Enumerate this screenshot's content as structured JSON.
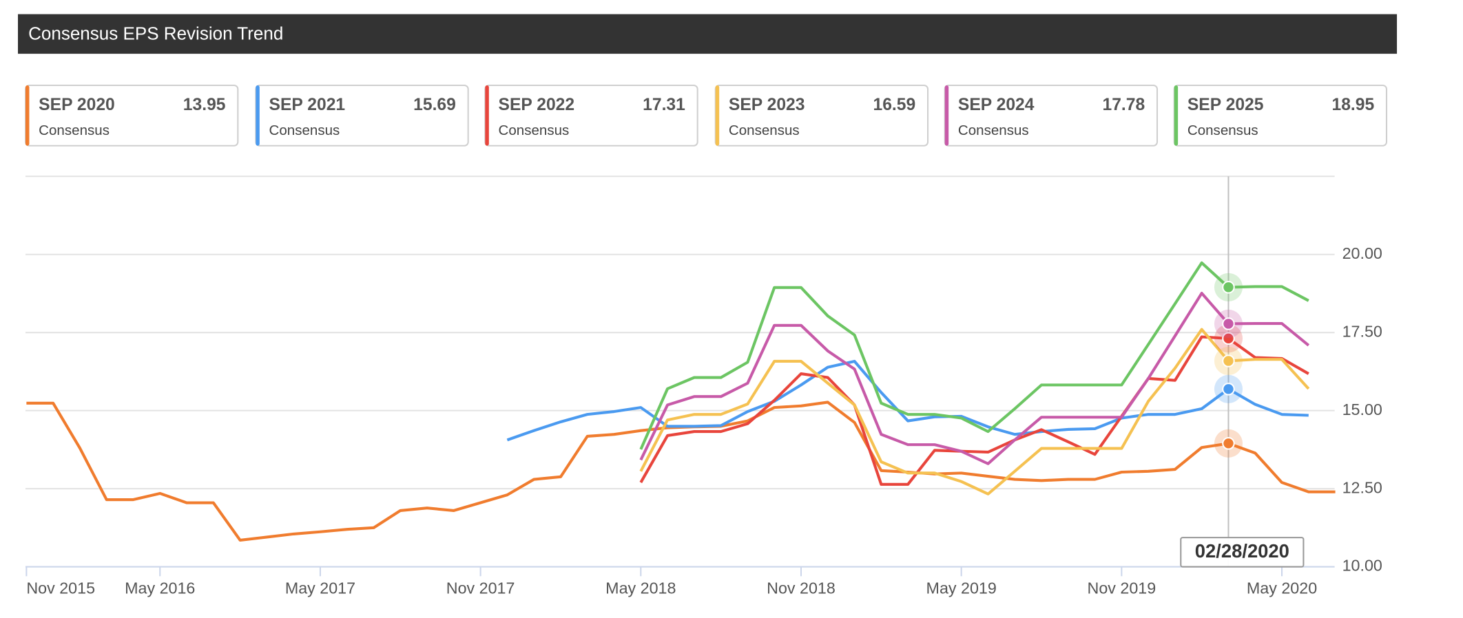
{
  "chart_data": {
    "type": "line",
    "title": "Consensus EPS Revision Trend",
    "legend_caption": "Consensus",
    "tooltip_label": "02/28/2020",
    "categories": [
      "Nov 2015",
      null,
      null,
      null,
      null,
      "May 2016",
      null,
      null,
      null,
      null,
      null,
      "May 2017",
      null,
      null,
      null,
      null,
      null,
      "Nov 2017",
      null,
      null,
      null,
      null,
      null,
      "May 2018",
      null,
      null,
      null,
      null,
      null,
      "Nov 2018",
      null,
      null,
      null,
      null,
      null,
      "May 2019",
      null,
      null,
      null,
      null,
      null,
      "Nov 2019",
      null,
      null,
      null,
      null,
      null,
      "May 2020",
      null,
      null
    ],
    "ylim": [
      10,
      22.5
    ],
    "yticks": [
      {
        "value": 10,
        "label": "10.00"
      },
      {
        "value": 12.5,
        "label": "12.50"
      },
      {
        "value": 15,
        "label": "15.00"
      },
      {
        "value": 17.5,
        "label": "17.50"
      },
      {
        "value": 20,
        "label": "20.00"
      }
    ],
    "grid": true,
    "series": [
      {
        "name": "SEP 2020",
        "color": "#f07c2e",
        "values": [
          15.24,
          15.24,
          13.8,
          12.15,
          12.15,
          12.35,
          12.05,
          12.05,
          10.85,
          10.95,
          11.05,
          11.12,
          11.2,
          11.25,
          11.8,
          11.88,
          11.8,
          12.05,
          12.3,
          12.8,
          12.88,
          14.18,
          14.24,
          14.36,
          14.45,
          14.48,
          14.5,
          14.67,
          15.1,
          15.15,
          15.27,
          14.62,
          13.08,
          13.03,
          12.97,
          13.0,
          12.9,
          12.8,
          12.76,
          12.8,
          12.8,
          13.03,
          13.06,
          13.12,
          13.82,
          13.95,
          13.64,
          12.7,
          12.4,
          12.4
        ]
      },
      {
        "name": "SEP 2021",
        "color": "#4a9af0",
        "values": [
          null,
          null,
          null,
          null,
          null,
          null,
          null,
          null,
          null,
          null,
          null,
          null,
          null,
          null,
          null,
          null,
          null,
          null,
          14.06,
          14.36,
          14.64,
          14.88,
          14.97,
          15.1,
          14.5,
          14.5,
          14.52,
          14.97,
          15.3,
          15.82,
          16.39,
          16.58,
          15.58,
          14.67,
          14.8,
          14.82,
          14.48,
          14.24,
          14.33,
          14.4,
          14.42,
          14.76,
          14.88,
          14.88,
          15.06,
          15.69,
          15.2,
          14.88,
          14.85,
          null
        ]
      },
      {
        "name": "SEP 2022",
        "color": "#e8453c",
        "values": [
          null,
          null,
          null,
          null,
          null,
          null,
          null,
          null,
          null,
          null,
          null,
          null,
          null,
          null,
          null,
          null,
          null,
          null,
          null,
          null,
          null,
          null,
          null,
          12.7,
          14.2,
          14.33,
          14.33,
          14.58,
          15.33,
          16.18,
          16.06,
          15.18,
          12.64,
          12.64,
          13.73,
          13.7,
          13.67,
          14.06,
          14.39,
          14.0,
          13.6,
          14.82,
          16.03,
          15.97,
          17.36,
          17.31,
          16.7,
          16.67,
          16.18,
          null
        ]
      },
      {
        "name": "SEP 2023",
        "color": "#f5c151",
        "values": [
          null,
          null,
          null,
          null,
          null,
          null,
          null,
          null,
          null,
          null,
          null,
          null,
          null,
          null,
          null,
          null,
          null,
          null,
          null,
          null,
          null,
          null,
          null,
          13.06,
          14.7,
          14.88,
          14.88,
          15.21,
          16.58,
          16.58,
          15.88,
          15.18,
          13.36,
          13.0,
          13.0,
          12.73,
          12.33,
          13.06,
          13.79,
          13.79,
          13.79,
          13.79,
          15.3,
          16.36,
          17.6,
          16.59,
          16.64,
          16.64,
          15.7,
          null
        ]
      },
      {
        "name": "SEP 2024",
        "color": "#c75aa8",
        "values": [
          null,
          null,
          null,
          null,
          null,
          null,
          null,
          null,
          null,
          null,
          null,
          null,
          null,
          null,
          null,
          null,
          null,
          null,
          null,
          null,
          null,
          null,
          null,
          13.42,
          15.18,
          15.45,
          15.45,
          15.88,
          17.73,
          17.73,
          16.91,
          16.33,
          14.24,
          13.91,
          13.91,
          13.7,
          13.3,
          14.06,
          14.79,
          14.79,
          14.79,
          14.79,
          16.03,
          17.39,
          18.76,
          17.78,
          17.79,
          17.79,
          17.09,
          null
        ]
      },
      {
        "name": "SEP 2025",
        "color": "#6cc563",
        "values": [
          null,
          null,
          null,
          null,
          null,
          null,
          null,
          null,
          null,
          null,
          null,
          null,
          null,
          null,
          null,
          null,
          null,
          null,
          null,
          null,
          null,
          null,
          null,
          13.76,
          15.7,
          16.06,
          16.06,
          16.55,
          18.94,
          18.94,
          18.03,
          17.42,
          15.24,
          14.88,
          14.88,
          14.76,
          14.33,
          15.06,
          15.82,
          15.82,
          15.82,
          15.82,
          17.12,
          18.42,
          19.73,
          18.95,
          18.97,
          18.97,
          18.52,
          null
        ]
      }
    ]
  }
}
